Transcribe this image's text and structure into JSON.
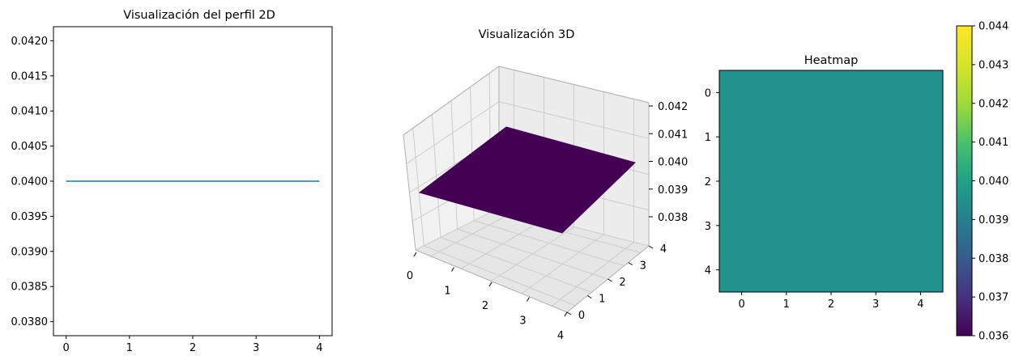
{
  "chart_data": [
    {
      "type": "line",
      "title": "Visualización del perfil 2D",
      "xlabel": "",
      "ylabel": "",
      "x": [
        0,
        1,
        2,
        3,
        4
      ],
      "series": [
        {
          "values": [
            0.04,
            0.04,
            0.04,
            0.04,
            0.04
          ],
          "color": "#1f77b4"
        }
      ],
      "xlim": [
        -0.2,
        4.2
      ],
      "ylim": [
        0.0378,
        0.0422
      ],
      "x_ticks": [
        "0",
        "1",
        "2",
        "3",
        "4"
      ],
      "y_ticks": [
        "0.0380",
        "0.0385",
        "0.0390",
        "0.0395",
        "0.0400",
        "0.0405",
        "0.0410",
        "0.0415",
        "0.0420"
      ],
      "grid": false
    },
    {
      "type": "surface",
      "title": "Visualización 3D",
      "x": [
        0,
        1,
        2,
        3,
        4
      ],
      "y": [
        0,
        1,
        2,
        3,
        4
      ],
      "z_value": 0.04,
      "x_ticks": [
        "0",
        "1",
        "2",
        "3",
        "4"
      ],
      "y_ticks": [
        "0",
        "1",
        "2",
        "3",
        "4"
      ],
      "z_ticks": [
        "0.038",
        "0.039",
        "0.040",
        "0.041",
        "0.042"
      ],
      "zlim": [
        0.038,
        0.042
      ],
      "surface_color": "#440154",
      "grid": true
    },
    {
      "type": "heatmap",
      "title": "Heatmap",
      "x_ticks": [
        "0",
        "1",
        "2",
        "3",
        "4"
      ],
      "y_ticks": [
        "0",
        "1",
        "2",
        "3",
        "4"
      ],
      "values": [
        [
          0.04,
          0.04,
          0.04,
          0.04,
          0.04
        ],
        [
          0.04,
          0.04,
          0.04,
          0.04,
          0.04
        ],
        [
          0.04,
          0.04,
          0.04,
          0.04,
          0.04
        ],
        [
          0.04,
          0.04,
          0.04,
          0.04,
          0.04
        ],
        [
          0.04,
          0.04,
          0.04,
          0.04,
          0.04
        ]
      ],
      "cell_color": "#21918c",
      "colorbar": {
        "range": [
          0.036,
          0.044
        ],
        "ticks": [
          "0.036",
          "0.037",
          "0.038",
          "0.039",
          "0.040",
          "0.041",
          "0.042",
          "0.043",
          "0.044"
        ],
        "colormap": "viridis"
      }
    }
  ],
  "colors": {
    "line": "#1f77b4",
    "surface": "#440154",
    "heatmap_cell": "#21918c",
    "pane": "#f2f2f2",
    "grid": "#cccccc"
  }
}
